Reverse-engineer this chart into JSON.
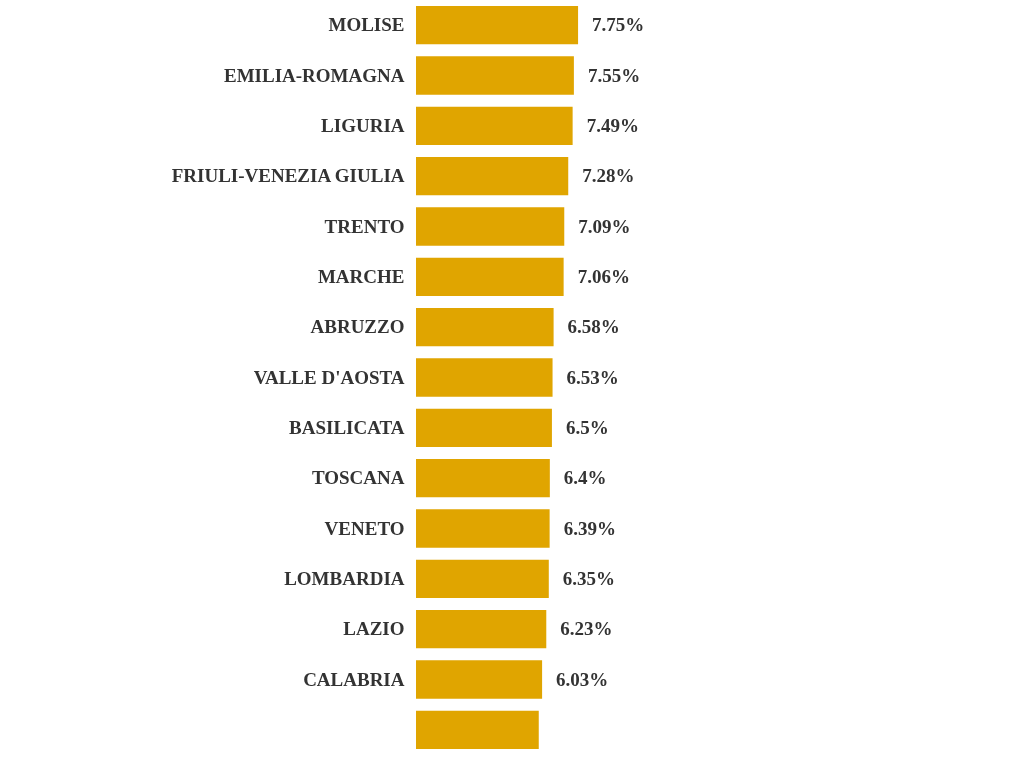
{
  "chart_data": {
    "type": "bar",
    "orientation": "horizontal",
    "categories": [
      "MOLISE",
      "EMILIA-ROMAGNA",
      "LIGURIA",
      "FRIULI-VENEZIA GIULIA",
      "TRENTO",
      "MARCHE",
      "ABRUZZO",
      "VALLE D'AOSTA",
      "BASILICATA",
      "TOSCANA",
      "VENETO",
      "LOMBARDIA",
      "LAZIO",
      "CALABRIA",
      null
    ],
    "values": [
      7.75,
      7.55,
      7.49,
      7.28,
      7.09,
      7.06,
      6.58,
      6.53,
      6.5,
      6.4,
      6.39,
      6.35,
      6.23,
      6.03,
      5.87
    ],
    "value_labels": [
      "7.75%",
      "7.55%",
      "7.49%",
      "7.28%",
      "7.09%",
      "7.06%",
      "6.58%",
      "6.53%",
      "6.5%",
      "6.4%",
      "6.39%",
      "6.35%",
      "6.23%",
      "6.03%",
      null
    ],
    "color": "#e0a500"
  }
}
